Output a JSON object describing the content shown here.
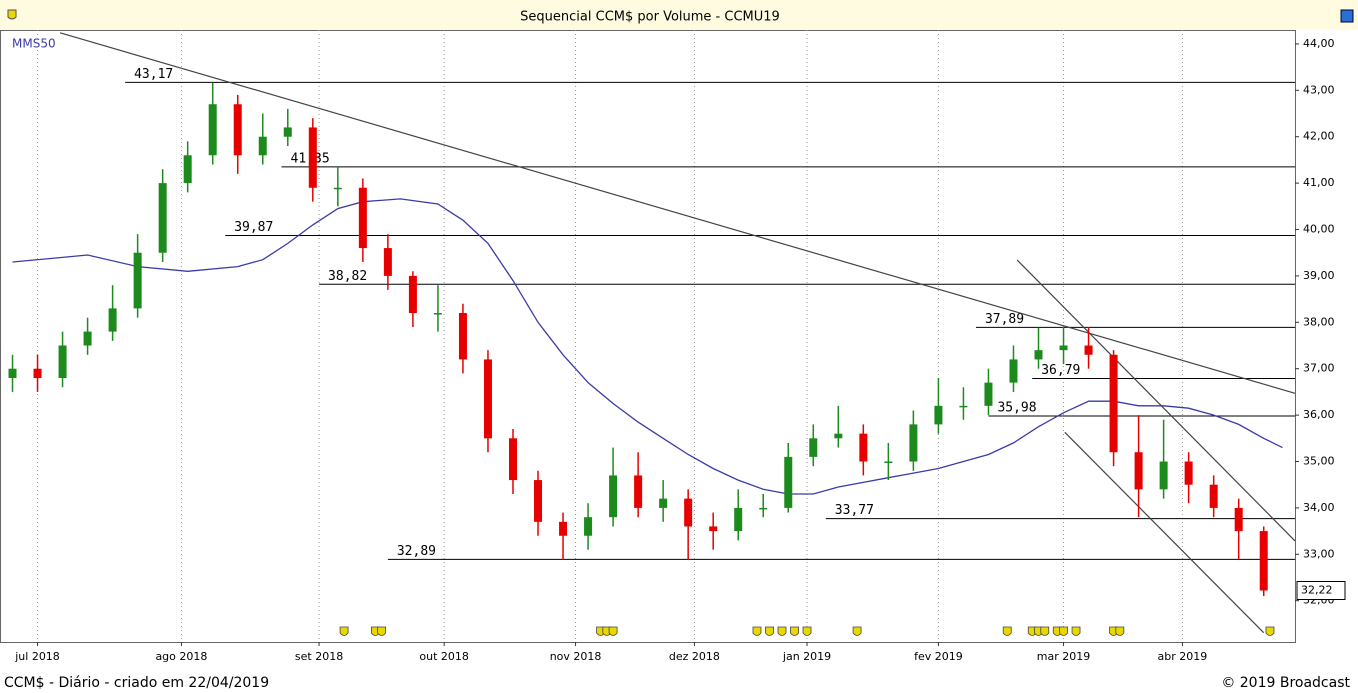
{
  "chart_data": {
    "type": "candlestick",
    "title": "Sequencial CCM$ por Volume - CCMU19",
    "footer_left": "CCM$ - Diário - criado em 22/04/2019",
    "footer_right": "© 2019 Broadcast",
    "colors": {
      "up": "#1c8a1c",
      "down": "#e60000"
    },
    "x": [
      0,
      4,
      8,
      12,
      16,
      20,
      24,
      28,
      32,
      36,
      40,
      44,
      48,
      52,
      56,
      60,
      64,
      68,
      72,
      76,
      80,
      84,
      88,
      92,
      96,
      100,
      104,
      108,
      112,
      116,
      120,
      124,
      128,
      132,
      136,
      140,
      144,
      148,
      152,
      156,
      160,
      164,
      168,
      172,
      176,
      180,
      184,
      188,
      192,
      196,
      200
    ],
    "open": [
      36.8,
      37.0,
      36.8,
      37.5,
      37.8,
      38.3,
      39.5,
      41.0,
      41.6,
      42.7,
      41.6,
      42.0,
      42.2,
      40.9,
      40.9,
      39.6,
      39.0,
      38.2,
      38.2,
      37.2,
      35.5,
      34.6,
      33.7,
      33.4,
      33.8,
      34.7,
      34.0,
      34.2,
      33.6,
      33.5,
      34.0,
      34.0,
      35.1,
      35.5,
      35.6,
      35.0,
      35.0,
      35.8,
      36.2,
      36.2,
      36.7,
      37.2,
      37.4,
      37.5,
      37.3,
      35.2,
      34.4,
      35.0,
      34.5,
      34.0,
      33.5
    ],
    "high": [
      37.3,
      37.3,
      37.8,
      38.1,
      38.8,
      39.9,
      41.3,
      41.9,
      43.17,
      42.9,
      42.5,
      42.6,
      42.4,
      41.35,
      41.1,
      39.9,
      39.1,
      38.8,
      38.4,
      37.4,
      35.7,
      34.8,
      33.9,
      34.1,
      35.3,
      35.2,
      34.6,
      34.4,
      33.9,
      34.4,
      34.3,
      35.4,
      35.8,
      36.2,
      35.8,
      35.4,
      36.1,
      36.8,
      36.6,
      37.0,
      37.5,
      37.89,
      37.9,
      37.9,
      37.4,
      36.0,
      35.9,
      35.2,
      34.7,
      34.2,
      33.6
    ],
    "low": [
      36.5,
      36.5,
      36.6,
      37.3,
      37.6,
      38.1,
      39.3,
      40.8,
      41.4,
      41.2,
      41.4,
      41.8,
      40.6,
      40.5,
      39.3,
      38.7,
      37.9,
      37.8,
      36.9,
      35.2,
      34.3,
      33.4,
      32.89,
      33.1,
      33.6,
      33.8,
      33.7,
      32.89,
      33.1,
      33.3,
      33.8,
      33.9,
      34.9,
      35.3,
      34.7,
      34.6,
      34.8,
      35.6,
      35.9,
      36.0,
      36.5,
      37.0,
      37.1,
      37.0,
      34.9,
      33.8,
      34.2,
      34.1,
      33.8,
      32.9,
      32.1
    ],
    "close": [
      37.0,
      36.8,
      37.5,
      37.8,
      38.3,
      39.5,
      41.0,
      41.6,
      42.7,
      41.6,
      42.0,
      42.2,
      40.9,
      40.9,
      39.6,
      39.0,
      38.2,
      38.2,
      37.2,
      35.5,
      34.6,
      33.7,
      33.4,
      33.8,
      34.7,
      34.0,
      34.2,
      33.6,
      33.5,
      34.0,
      34.0,
      35.1,
      35.5,
      35.6,
      35.0,
      35.0,
      35.8,
      36.2,
      36.2,
      36.7,
      37.2,
      37.4,
      37.5,
      37.3,
      35.2,
      34.4,
      35.0,
      34.5,
      34.0,
      33.5,
      32.22
    ],
    "moving_average": {
      "name": "MMS50",
      "color": "#3b3ba8",
      "x": [
        0,
        8,
        12,
        20,
        28,
        36,
        40,
        44,
        48,
        52,
        56,
        62,
        68,
        72,
        76,
        80,
        84,
        88,
        92,
        96,
        100,
        104,
        108,
        112,
        116,
        120,
        124,
        128,
        132,
        136,
        140,
        144,
        148,
        152,
        156,
        160,
        164,
        168,
        172,
        176,
        180,
        184,
        188,
        192,
        196,
        200,
        203
      ],
      "values": [
        39.3,
        39.4,
        39.45,
        39.2,
        39.1,
        39.2,
        39.35,
        39.7,
        40.1,
        40.45,
        40.6,
        40.66,
        40.55,
        40.2,
        39.7,
        38.9,
        38.0,
        37.3,
        36.7,
        36.25,
        35.85,
        35.5,
        35.15,
        34.85,
        34.6,
        34.4,
        34.3,
        34.3,
        34.45,
        34.55,
        34.65,
        34.75,
        34.85,
        35.0,
        35.15,
        35.4,
        35.75,
        36.05,
        36.3,
        36.3,
        36.2,
        36.2,
        36.15,
        36.0,
        35.8,
        35.5,
        35.3
      ]
    },
    "levels": [
      {
        "value": 43.17,
        "label": "43,17",
        "from": 18
      },
      {
        "value": 41.35,
        "label": "41,35",
        "from": 43
      },
      {
        "value": 39.87,
        "label": "39,87",
        "from": 34
      },
      {
        "value": 38.82,
        "label": "38,82",
        "from": 49
      },
      {
        "value": 37.89,
        "label": "37,89",
        "from": 154
      },
      {
        "value": 36.79,
        "label": "36,79",
        "from": 163
      },
      {
        "value": 35.98,
        "label": "35,98",
        "from": 156
      },
      {
        "value": 33.77,
        "label": "33,77",
        "from": 130
      },
      {
        "value": 32.89,
        "label": "32,89",
        "from": 60
      }
    ],
    "trendlines": [
      {
        "x": [
          7.6,
          205
        ],
        "values": [
          44.24,
          36.47
        ]
      },
      {
        "x": [
          160.6,
          205
        ],
        "values": [
          39.34,
          33.29
        ]
      },
      {
        "x": [
          168.2,
          200
        ],
        "values": [
          35.63,
          31.31
        ]
      }
    ],
    "last": {
      "value": 32.22,
      "label": "32,22"
    },
    "events": [
      53,
      58,
      59,
      94,
      95,
      96,
      119,
      121,
      123,
      125,
      127,
      135,
      159,
      163,
      164,
      165,
      167,
      168,
      170,
      176,
      177,
      201
    ],
    "xlim": [
      -2,
      205
    ],
    "xticks": [
      {
        "value": 4,
        "label": "jul 2018"
      },
      {
        "value": 27,
        "label": "ago 2018"
      },
      {
        "value": 49,
        "label": "set 2018"
      },
      {
        "value": 69,
        "label": "out 2018"
      },
      {
        "value": 90,
        "label": "nov 2018"
      },
      {
        "value": 109,
        "label": "dez 2018"
      },
      {
        "value": 127,
        "label": "jan 2019"
      },
      {
        "value": 148,
        "label": "fev 2019"
      },
      {
        "value": 168,
        "label": "mar 2019"
      },
      {
        "value": 187,
        "label": "abr 2019"
      }
    ],
    "ylim": [
      31.11,
      44.3
    ],
    "yticks": [
      {
        "value": 32,
        "label": "32,00"
      },
      {
        "value": 33,
        "label": "33,00"
      },
      {
        "value": 34,
        "label": "34,00"
      },
      {
        "value": 35,
        "label": "35,00"
      },
      {
        "value": 36,
        "label": "36,00"
      },
      {
        "value": 37,
        "label": "37,00"
      },
      {
        "value": 38,
        "label": "38,00"
      },
      {
        "value": 39,
        "label": "39,00"
      },
      {
        "value": 40,
        "label": "40,00"
      },
      {
        "value": 41,
        "label": "41,00"
      },
      {
        "value": 42,
        "label": "42,00"
      },
      {
        "value": 43,
        "label": "43,00"
      },
      {
        "value": 44,
        "label": "44,00"
      }
    ]
  }
}
